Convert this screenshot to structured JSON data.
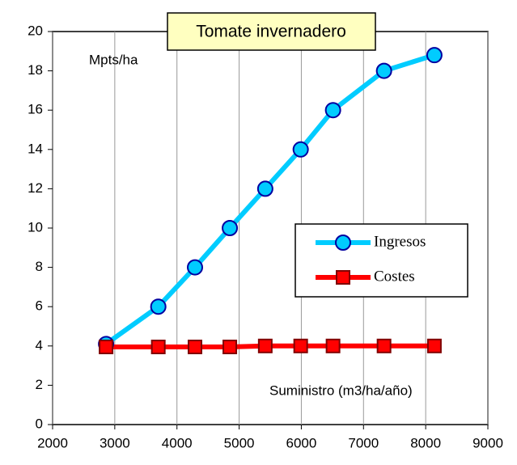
{
  "chart_data": {
    "type": "line",
    "title": "Tomate invernadero",
    "y_label": "Mpts/ha",
    "x_label": "Suministro (m3/ha/año)",
    "x": [
      2860,
      3700,
      4290,
      4850,
      5420,
      5990,
      6510,
      7330,
      8140
    ],
    "series": [
      {
        "name": "Ingresos",
        "color": "#00ccff",
        "marker": "circle",
        "values": [
          4.1,
          6.0,
          8.0,
          10.0,
          12.0,
          14.0,
          16.0,
          18.0,
          18.8
        ]
      },
      {
        "name": "Costes",
        "color": "#ff0000",
        "marker": "square",
        "values": [
          3.95,
          3.95,
          3.95,
          3.95,
          4.0,
          4.0,
          4.0,
          4.0,
          4.0
        ]
      }
    ],
    "xlim": [
      2000,
      9000
    ],
    "xticks": [
      2000,
      3000,
      4000,
      5000,
      6000,
      7000,
      8000,
      9000
    ],
    "ylim": [
      0,
      20
    ],
    "yticks": [
      0,
      2,
      4,
      6,
      8,
      10,
      12,
      14,
      16,
      18,
      20
    ],
    "grid": "x"
  }
}
